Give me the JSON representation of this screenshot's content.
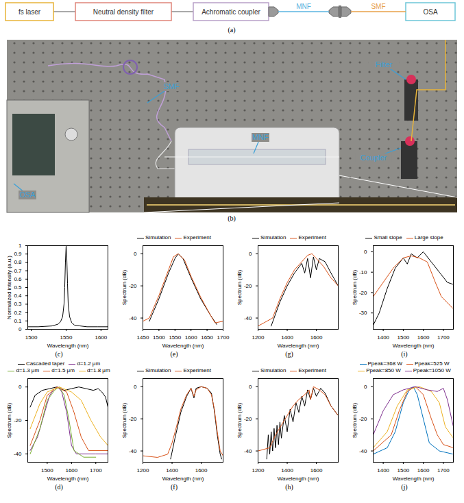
{
  "diagram": {
    "label": "(a)",
    "nodes": [
      {
        "label": "fs laser",
        "color": "#e8b43a"
      },
      {
        "label": "Neutral density filter",
        "color": "#e0857a"
      },
      {
        "label": "Achromatic coupler",
        "color": "#b8a0c8"
      },
      {
        "label": "OSA",
        "color": "#6cc6d8"
      }
    ],
    "fibers": [
      {
        "label": "MNF",
        "color": "#5ab4e0"
      },
      {
        "label": "SMF",
        "color": "#e8a048"
      }
    ]
  },
  "photo": {
    "label": "(b)",
    "annotations": [
      {
        "label": "SMF",
        "color": "#3aa0d8"
      },
      {
        "label": "MNF",
        "color": "#3aa0d8"
      },
      {
        "label": "Filter",
        "color": "#3aa0d8"
      },
      {
        "label": "Coupler",
        "color": "#3aa0d8"
      },
      {
        "label": "OSA",
        "color": "#3aa0d8"
      }
    ]
  },
  "chart_data": [
    {
      "label": "(c)",
      "type": "line",
      "x_label": "Wavelength (nm)",
      "y_label": "Normalized intensity (a.u.)",
      "xlim": [
        1495,
        1610
      ],
      "xticks": [
        1500,
        1550,
        1600
      ],
      "ylim": [
        0,
        1
      ],
      "yticks": [
        0,
        0.1,
        0.2,
        0.3,
        0.4,
        0.5,
        0.6,
        0.7,
        0.8,
        0.9,
        1
      ],
      "series": [
        {
          "color": "#000000",
          "x": [
            1495,
            1510,
            1520,
            1530,
            1538,
            1542,
            1545,
            1547,
            1548,
            1549,
            1550,
            1551,
            1552,
            1553,
            1555,
            1558,
            1562,
            1570,
            1580,
            1595,
            1610
          ],
          "values": [
            0.03,
            0.03,
            0.035,
            0.04,
            0.06,
            0.09,
            0.15,
            0.3,
            0.5,
            0.8,
            1.0,
            0.85,
            0.55,
            0.3,
            0.15,
            0.08,
            0.05,
            0.04,
            0.03,
            0.03,
            0.03
          ]
        }
      ]
    },
    {
      "label": "(d)",
      "type": "line",
      "x_label": "Wavelength (nm)",
      "y_label": "Spectrum (dB)",
      "legend": "top",
      "xlim": [
        1420,
        1750
      ],
      "xticks": [
        1500,
        1600,
        1700
      ],
      "ylim": [
        -45,
        5
      ],
      "yticks": [
        -40,
        -20,
        0
      ],
      "series": [
        {
          "name": "Cascaded taper",
          "color": "#000000",
          "x": [
            1430,
            1450,
            1480,
            1510,
            1540,
            1570,
            1600,
            1630,
            1660,
            1690,
            1710,
            1725,
            1740,
            1750
          ],
          "values": [
            -12,
            -5,
            -2,
            -1,
            0,
            -2,
            -1,
            0,
            -1,
            -2,
            -1,
            -3,
            -6,
            -12
          ]
        },
        {
          "name": "d=1.2 μm",
          "color": "#7e2f8e",
          "x": [
            1430,
            1460,
            1490,
            1510,
            1530,
            1545,
            1560,
            1580,
            1600,
            1620,
            1700,
            1750
          ],
          "values": [
            -38,
            -30,
            -15,
            -5,
            -1,
            0,
            -3,
            -15,
            -35,
            -40,
            -40,
            -40
          ]
        },
        {
          "name": "d=1.3 μm",
          "color": "#77ac30",
          "x": [
            1430,
            1470,
            1500,
            1530,
            1550,
            1570,
            1590,
            1610,
            1650,
            1700
          ],
          "values": [
            -40,
            -25,
            -8,
            -2,
            0,
            -5,
            -20,
            -38,
            -42,
            -42
          ]
        },
        {
          "name": "d=1.5 μm",
          "color": "#d95319",
          "x": [
            1430,
            1470,
            1500,
            1540,
            1580,
            1610,
            1640,
            1670,
            1750
          ],
          "values": [
            -35,
            -20,
            -5,
            0,
            -3,
            -15,
            -30,
            -38,
            -38
          ]
        },
        {
          "name": "d=1.8 μm",
          "color": "#edb120",
          "x": [
            1430,
            1470,
            1500,
            1550,
            1600,
            1640,
            1680,
            1720,
            1750
          ],
          "values": [
            -25,
            -10,
            -3,
            0,
            -3,
            -8,
            -20,
            -30,
            -35
          ]
        }
      ]
    },
    {
      "label": "(e)",
      "type": "line",
      "x_label": "Wavelength (nm)",
      "y_label": "Spectrum (dB)",
      "legend": "top",
      "xlim": [
        1450,
        1700
      ],
      "xticks": [
        1450,
        1500,
        1550,
        1600,
        1650,
        1700
      ],
      "ylim": [
        -47,
        5
      ],
      "yticks": [
        -40,
        -20,
        0
      ],
      "series": [
        {
          "name": "Simulation",
          "color": "#000000",
          "x": [
            1470,
            1500,
            1530,
            1550,
            1560,
            1575,
            1600,
            1630,
            1660,
            1680
          ],
          "values": [
            -42,
            -28,
            -12,
            -3,
            0,
            -3,
            -15,
            -28,
            -38,
            -44
          ]
        },
        {
          "name": "Experiment",
          "color": "#d95319",
          "x": [
            1450,
            1470,
            1500,
            1530,
            1545,
            1560,
            1580,
            1600,
            1630,
            1660,
            1675,
            1700
          ],
          "values": [
            -42,
            -40,
            -26,
            -10,
            -2,
            0,
            -4,
            -14,
            -27,
            -38,
            -43,
            -42
          ]
        }
      ]
    },
    {
      "label": "(f)",
      "type": "line",
      "x_label": "Wavelength (nm)",
      "y_label": "Spectrum (dB)",
      "legend": "top",
      "xlim": [
        1200,
        1750
      ],
      "xticks": [
        1200,
        1400,
        1600
      ],
      "ylim": [
        -47,
        5
      ],
      "yticks": [
        -40,
        -20,
        0
      ],
      "series": [
        {
          "name": "Simulation",
          "color": "#000000",
          "x": [
            1390,
            1420,
            1460,
            1500,
            1530,
            1550,
            1565,
            1600,
            1640,
            1670,
            1690,
            1710,
            1730,
            1740
          ],
          "values": [
            -45,
            -32,
            -16,
            -6,
            -1,
            -7,
            -1,
            0,
            -1,
            -4,
            -15,
            -30,
            -42,
            -45
          ]
        },
        {
          "name": "Experiment",
          "color": "#d95319",
          "x": [
            1200,
            1300,
            1370,
            1400,
            1430,
            1460,
            1500,
            1530,
            1550,
            1565,
            1600,
            1640,
            1670,
            1690,
            1710,
            1730,
            1750
          ],
          "values": [
            -43,
            -44,
            -42,
            -35,
            -25,
            -14,
            -5,
            -1,
            -6,
            -2,
            0,
            -1,
            -5,
            -14,
            -28,
            -40,
            -43
          ]
        }
      ]
    },
    {
      "label": "(g)",
      "type": "line",
      "x_label": "Wavelength (nm)",
      "y_label": "Spectrum (dB)",
      "legend": "top",
      "xlim": [
        1200,
        1750
      ],
      "xticks": [
        1200,
        1400,
        1600
      ],
      "ylim": [
        -47,
        5
      ],
      "yticks": [
        -40,
        -20,
        0
      ],
      "series": [
        {
          "name": "Simulation",
          "color": "#000000",
          "x": [
            1290,
            1350,
            1400,
            1450,
            1500,
            1520,
            1540,
            1560,
            1580,
            1600,
            1620,
            1660,
            1700,
            1750
          ],
          "values": [
            -45,
            -30,
            -20,
            -12,
            -6,
            -12,
            -3,
            -15,
            -2,
            -10,
            -3,
            -5,
            -12,
            -20
          ]
        },
        {
          "name": "Experiment",
          "color": "#d95319",
          "x": [
            1200,
            1300,
            1350,
            1400,
            1450,
            1500,
            1540,
            1570,
            1600,
            1650,
            1700,
            1750
          ],
          "values": [
            -45,
            -40,
            -28,
            -18,
            -10,
            -5,
            -1,
            0,
            -3,
            -8,
            -15,
            -20
          ]
        }
      ]
    },
    {
      "label": "(h)",
      "type": "line",
      "x_label": "Wavelength (nm)",
      "y_label": "Spectrum (dB)",
      "legend": "top",
      "xlim": [
        1200,
        1750
      ],
      "xticks": [
        1200,
        1400,
        1600
      ],
      "ylim": [
        -47,
        5
      ],
      "yticks": [
        -40,
        -20,
        0
      ],
      "series": [
        {
          "name": "Simulation",
          "color": "#000000",
          "x": [
            1260,
            1270,
            1280,
            1290,
            1300,
            1310,
            1320,
            1330,
            1340,
            1350,
            1360,
            1380,
            1400,
            1420,
            1440,
            1460,
            1480,
            1500,
            1520,
            1540,
            1560,
            1580,
            1600,
            1630,
            1660,
            1700,
            1750
          ],
          "values": [
            -45,
            -30,
            -42,
            -28,
            -40,
            -26,
            -38,
            -24,
            -36,
            -22,
            -32,
            -18,
            -28,
            -14,
            -22,
            -10,
            -16,
            -6,
            -12,
            -2,
            -8,
            -1,
            -6,
            -1,
            -4,
            -12,
            -18
          ]
        },
        {
          "name": "Experiment",
          "color": "#d95319",
          "x": [
            1200,
            1280,
            1320,
            1360,
            1400,
            1440,
            1480,
            1520,
            1550,
            1560,
            1580,
            1620,
            1660,
            1700,
            1750
          ],
          "values": [
            -40,
            -38,
            -30,
            -24,
            -18,
            -12,
            -8,
            -5,
            -2,
            -8,
            0,
            -2,
            -5,
            -12,
            -18
          ]
        }
      ]
    },
    {
      "label": "(i)",
      "type": "line",
      "x_label": "Wavelength (nm)",
      "y_label": "Spectrum (dB)",
      "legend": "top",
      "xlim": [
        1350,
        1750
      ],
      "xticks": [
        1400,
        1500,
        1600,
        1700
      ],
      "ylim": [
        -38,
        3
      ],
      "yticks": [
        -30,
        -20,
        -10,
        0
      ],
      "series": [
        {
          "name": "Small slope",
          "color": "#000000",
          "x": [
            1350,
            1380,
            1420,
            1460,
            1500,
            1520,
            1540,
            1570,
            1600,
            1640,
            1680,
            1720,
            1750
          ],
          "values": [
            -36,
            -30,
            -18,
            -8,
            -3,
            -6,
            -1,
            -3,
            0,
            -5,
            -10,
            -15,
            -16
          ]
        },
        {
          "name": "Large slope",
          "color": "#d95319",
          "x": [
            1350,
            1400,
            1450,
            1500,
            1540,
            1580,
            1620,
            1660,
            1690,
            1720,
            1750
          ],
          "values": [
            -22,
            -15,
            -8,
            -3,
            -2,
            -3,
            -5,
            -15,
            -22,
            -25,
            -28
          ]
        }
      ]
    },
    {
      "label": "(j)",
      "type": "line",
      "x_label": "Wavelength (nm)",
      "y_label": "Spectrum (dB)",
      "legend": "top",
      "xlim": [
        1350,
        1750
      ],
      "xticks": [
        1400,
        1500,
        1600,
        1700
      ],
      "ylim": [
        -47,
        5
      ],
      "yticks": [
        -40,
        -20,
        0
      ],
      "series": [
        {
          "name": "Ppeak=368 W",
          "color": "#0072bd",
          "x": [
            1350,
            1420,
            1460,
            1500,
            1530,
            1550,
            1570,
            1600,
            1630,
            1680,
            1750
          ],
          "values": [
            -42,
            -38,
            -28,
            -10,
            -2,
            0,
            -5,
            -20,
            -35,
            -40,
            -42
          ]
        },
        {
          "name": "Ppeak=525 W",
          "color": "#d95319",
          "x": [
            1350,
            1440,
            1480,
            1520,
            1560,
            1600,
            1640,
            1670,
            1700,
            1750
          ],
          "values": [
            -40,
            -30,
            -15,
            -3,
            0,
            -5,
            -20,
            -30,
            -36,
            -38
          ]
        },
        {
          "name": "Ppeak=850 W",
          "color": "#edb120",
          "x": [
            1350,
            1420,
            1470,
            1520,
            1580,
            1640,
            1680,
            1710,
            1750
          ],
          "values": [
            -38,
            -28,
            -12,
            -2,
            0,
            -3,
            -10,
            -25,
            -32
          ]
        },
        {
          "name": "Ppeak=1050 W",
          "color": "#7e2f8e",
          "x": [
            1350,
            1400,
            1450,
            1500,
            1560,
            1620,
            1670,
            1700,
            1720,
            1750
          ],
          "values": [
            -30,
            -15,
            -5,
            -2,
            0,
            -2,
            -3,
            -1,
            -8,
            -25
          ]
        }
      ]
    }
  ]
}
